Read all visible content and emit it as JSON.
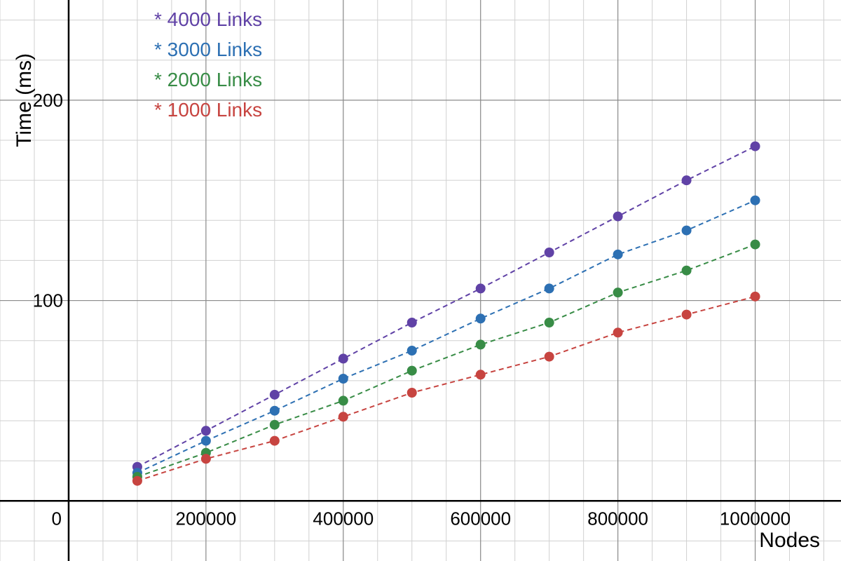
{
  "chart_data": {
    "type": "line",
    "xlabel": "Nodes",
    "ylabel": "Time (ms)",
    "xlim": [
      -100000,
      1125000
    ],
    "ylim": [
      -30,
      250
    ],
    "x_ticks": [
      200000,
      400000,
      600000,
      800000,
      1000000
    ],
    "x_tick_labels": [
      "200000",
      "400000",
      "600000",
      "800000",
      "1000000"
    ],
    "y_ticks": [
      100,
      200
    ],
    "y_tick_labels": [
      "100",
      "200"
    ],
    "origin_label": "0",
    "grid": true,
    "legend_position": "top-left",
    "x": [
      100000,
      200000,
      300000,
      400000,
      500000,
      600000,
      700000,
      800000,
      900000,
      1000000
    ],
    "series": [
      {
        "name": "4000 Links",
        "color": "#6042a6",
        "values": [
          17,
          35,
          53,
          71,
          89,
          106,
          124,
          142,
          160,
          177
        ]
      },
      {
        "name": "3000 Links",
        "color": "#2d70b3",
        "values": [
          14,
          30,
          45,
          61,
          75,
          91,
          106,
          123,
          135,
          150
        ]
      },
      {
        "name": "2000 Links",
        "color": "#388c46",
        "values": [
          12,
          24,
          38,
          50,
          65,
          78,
          89,
          104,
          115,
          128
        ]
      },
      {
        "name": "1000 Links",
        "color": "#c74440",
        "values": [
          10,
          21,
          30,
          42,
          54,
          63,
          72,
          84,
          93,
          102
        ]
      }
    ],
    "legend_marker": "*"
  }
}
